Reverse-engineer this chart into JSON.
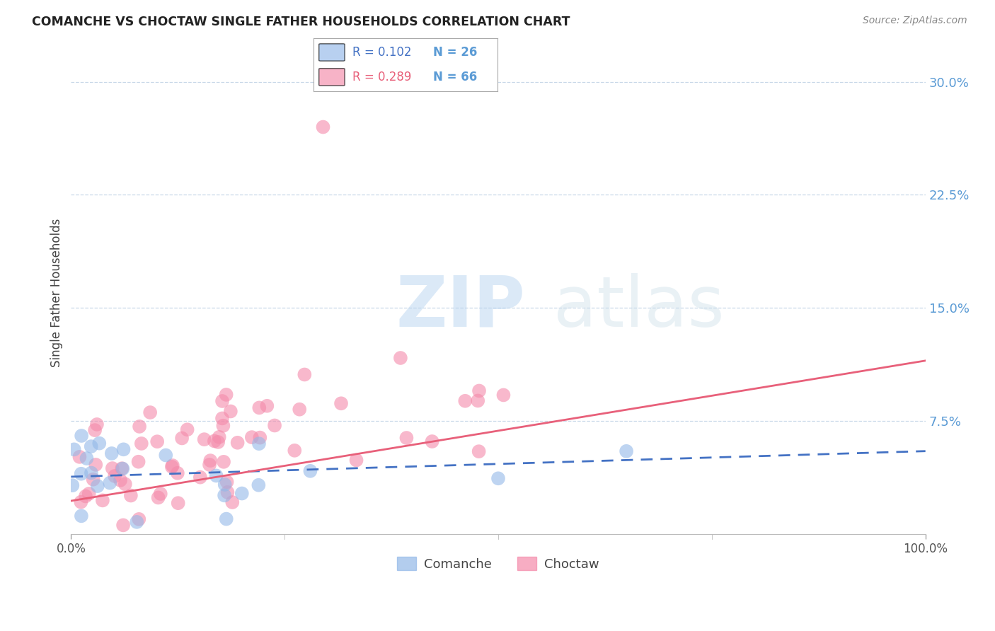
{
  "title": "COMANCHE VS CHOCTAW SINGLE FATHER HOUSEHOLDS CORRELATION CHART",
  "source": "Source: ZipAtlas.com",
  "ylabel": "Single Father Households",
  "watermark_zip": "ZIP",
  "watermark_atlas": "atlas",
  "ylim": [
    0,
    0.32
  ],
  "xlim": [
    0,
    1.0
  ],
  "yticks": [
    0.075,
    0.15,
    0.225,
    0.3
  ],
  "ytick_labels": [
    "7.5%",
    "15.0%",
    "22.5%",
    "30.0%"
  ],
  "xtick_labels": [
    "0.0%",
    "100.0%"
  ],
  "legend_r1": "R = 0.102",
  "legend_n1": "N = 26",
  "legend_r2": "R = 0.289",
  "legend_n2": "N = 66",
  "comanche_color": "#93b8e8",
  "choctaw_color": "#f48aaa",
  "comanche_line_color": "#4472c4",
  "choctaw_line_color": "#e8607a",
  "axis_color": "#5b9bd5",
  "background_color": "#ffffff",
  "comanche_line_x0": 0.0,
  "comanche_line_y0": 0.038,
  "comanche_line_x1": 1.0,
  "comanche_line_y1": 0.055,
  "choctaw_line_x0": 0.0,
  "choctaw_line_y0": 0.022,
  "choctaw_line_x1": 1.0,
  "choctaw_line_y1": 0.115
}
